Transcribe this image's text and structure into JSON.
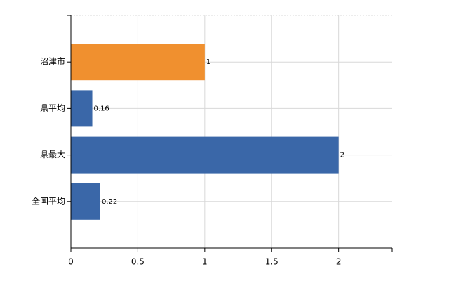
{
  "chart_data": {
    "type": "bar",
    "orientation": "horizontal",
    "categories": [
      "沼津市",
      "県平均",
      "県最大",
      "全国平均"
    ],
    "values": [
      1,
      0.16,
      2,
      0.22
    ],
    "colors": [
      "#f0902f",
      "#3a67a8",
      "#3a67a8",
      "#3a67a8"
    ],
    "xlim": [
      0,
      2.4
    ],
    "xticks": [
      0,
      0.5,
      1,
      1.5,
      2
    ],
    "grid": true
  }
}
